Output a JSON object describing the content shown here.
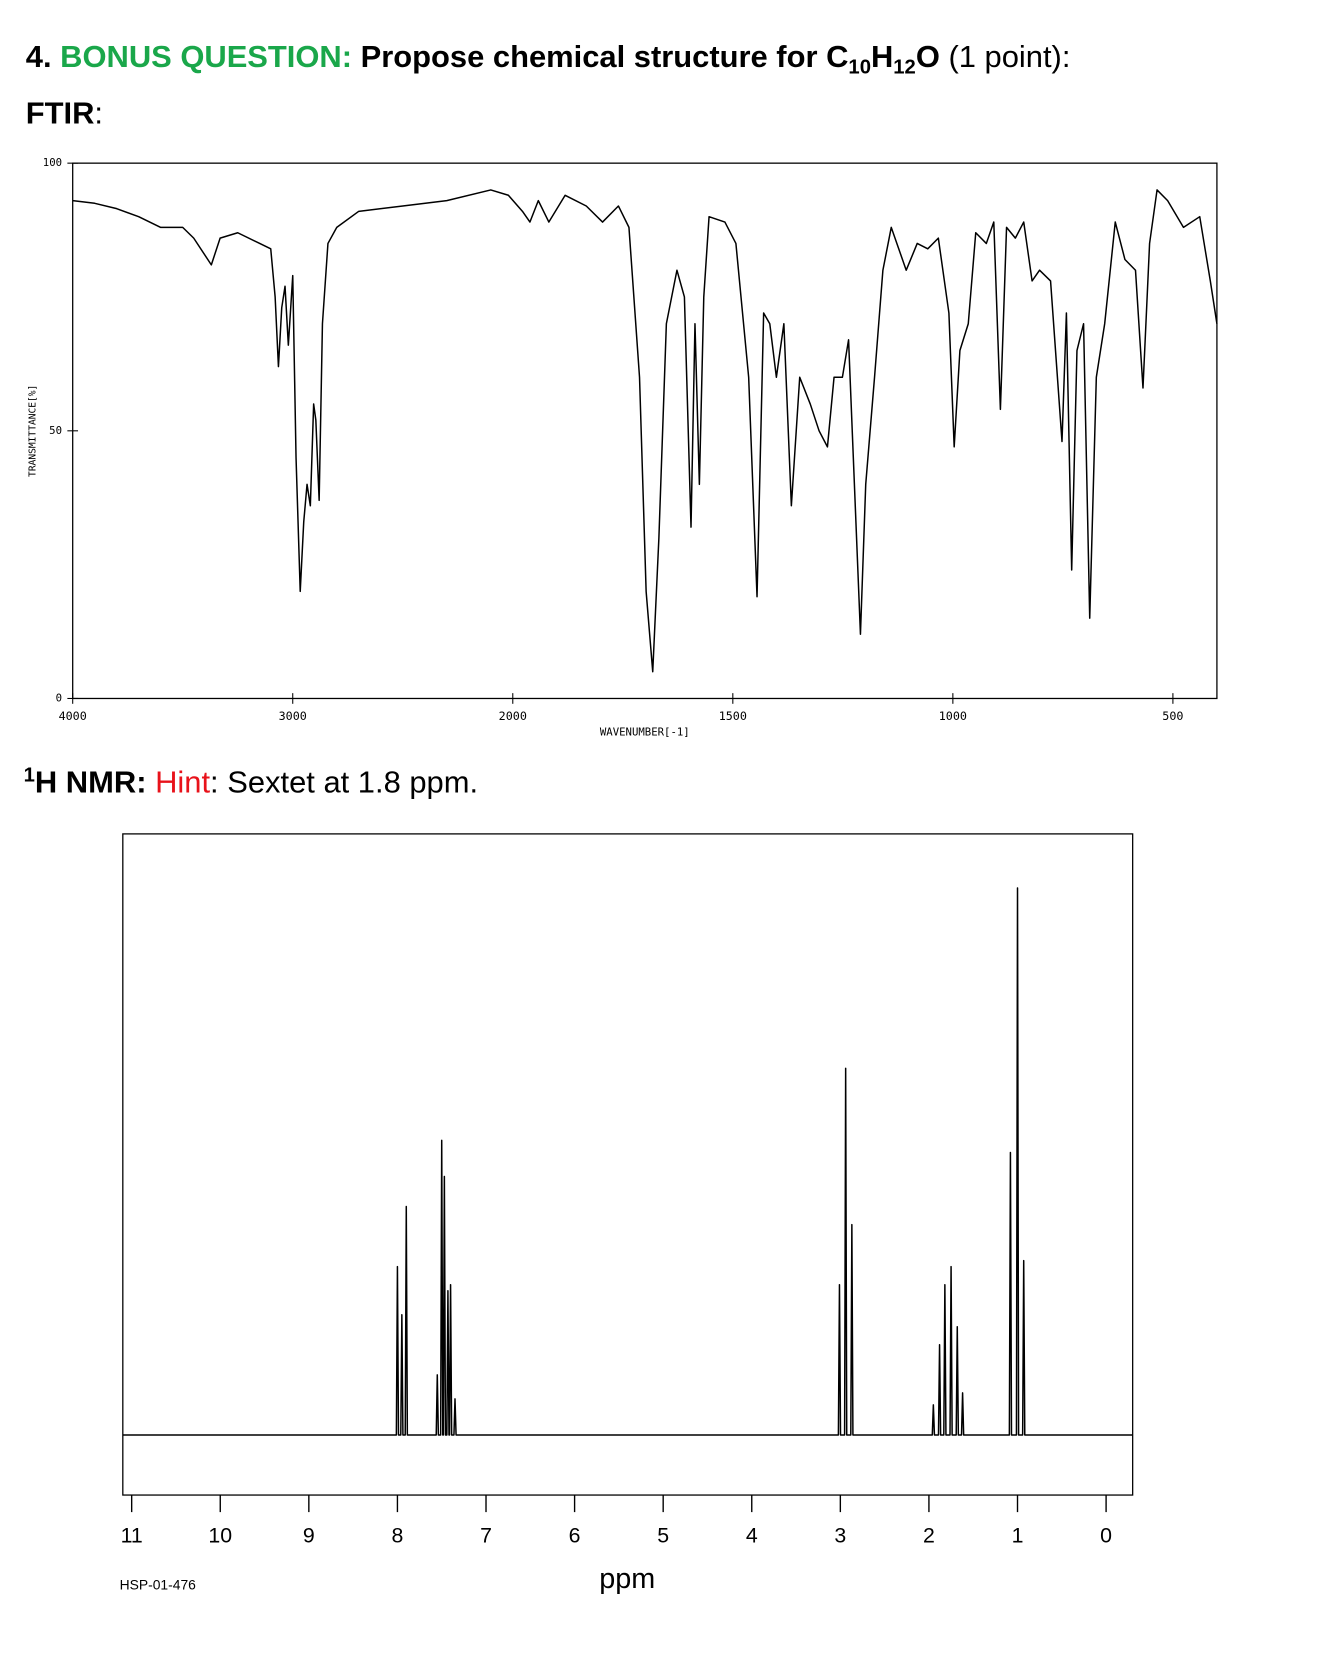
{
  "question": {
    "number": "4.",
    "label": "BONUS QUESTION:",
    "text": "Propose chemical structure for",
    "formula": [
      "C",
      "10",
      "H",
      "12",
      "O"
    ],
    "points": "(1 point):"
  },
  "ftir_heading": {
    "label": "FTIR",
    "colon": ":"
  },
  "nmr_heading": {
    "superscript": "1",
    "label": "H NMR:",
    "hint_label": "Hint",
    "hint_text": ": Sextet at 1.8 ppm."
  },
  "chart_data": [
    {
      "type": "line",
      "x_label": "WAVENUMBER[-1]",
      "y_label": "TRANSMITTANCE[%]",
      "color": "#000000",
      "grid": false,
      "xlim": [
        4000,
        400
      ],
      "xscale_break": 2000,
      "ylim": [
        0,
        100
      ],
      "xticks": [
        4000,
        3000,
        2000,
        1500,
        1000,
        500
      ],
      "yticks": [
        0,
        50,
        100
      ],
      "x": [
        4000,
        3900,
        3800,
        3700,
        3600,
        3500,
        3450,
        3370,
        3330,
        3250,
        3150,
        3100,
        3080,
        3065,
        3050,
        3035,
        3020,
        3000,
        2985,
        2966,
        2950,
        2935,
        2920,
        2905,
        2895,
        2880,
        2865,
        2840,
        2800,
        2700,
        2500,
        2300,
        2100,
        2020,
        1978,
        1961,
        1942,
        1918,
        1881,
        1833,
        1796,
        1760,
        1736,
        1712,
        1697,
        1682,
        1668,
        1651,
        1627,
        1610,
        1595,
        1586,
        1576,
        1566,
        1554,
        1518,
        1493,
        1464,
        1445,
        1430,
        1416,
        1401,
        1384,
        1367,
        1348,
        1324,
        1304,
        1285,
        1270,
        1251,
        1237,
        1210,
        1198,
        1178,
        1159,
        1140,
        1106,
        1081,
        1057,
        1033,
        1009,
        997,
        984,
        965,
        948,
        924,
        907,
        892,
        878,
        858,
        839,
        820,
        803,
        778,
        752,
        742,
        730,
        718,
        703,
        689,
        674,
        655,
        631,
        609,
        585,
        568,
        553,
        536,
        512,
        476,
        439,
        415,
        400
      ],
      "values": [
        93,
        92.5,
        91.5,
        90,
        88,
        88,
        86,
        81,
        86,
        87,
        85,
        84,
        75,
        62,
        73,
        77,
        66,
        79,
        45,
        20,
        33,
        40,
        36,
        55,
        52,
        37,
        70,
        85,
        88,
        91,
        92,
        93,
        95,
        94,
        91,
        89,
        93,
        89,
        94,
        92,
        89,
        92,
        88,
        60,
        20,
        5,
        30,
        70,
        80,
        75,
        32,
        70,
        40,
        75,
        90,
        89,
        85,
        60,
        19,
        72,
        70,
        60,
        70,
        36,
        60,
        55,
        50,
        47,
        60,
        60,
        67,
        12,
        40,
        60,
        80,
        88,
        80,
        85,
        84,
        86,
        72,
        47,
        65,
        70,
        87,
        85,
        89,
        54,
        88,
        86,
        89,
        78,
        80,
        78,
        48,
        72,
        24,
        65,
        70,
        15,
        60,
        70,
        89,
        82,
        80,
        58,
        85,
        95,
        93,
        88,
        90,
        78,
        70
      ]
    },
    {
      "type": "line",
      "x_label": "ppm",
      "annotation": "HSP-01-476",
      "color": "#000000",
      "grid": false,
      "xlim": [
        11.1,
        -0.3
      ],
      "ylim": [
        -10,
        100
      ],
      "xticks": [
        11,
        10,
        9,
        8,
        7,
        6,
        5,
        4,
        3,
        2,
        1,
        0
      ],
      "x": [
        11.1,
        8.012,
        8.0,
        7.988,
        7.962,
        7.95,
        7.938,
        7.912,
        7.9,
        7.888,
        7.562,
        7.55,
        7.538,
        7.512,
        7.5,
        7.488,
        7.482,
        7.47,
        7.458,
        7.442,
        7.43,
        7.418,
        7.412,
        7.4,
        7.388,
        7.362,
        7.35,
        7.338,
        3.022,
        3.01,
        2.998,
        2.952,
        2.94,
        2.928,
        2.882,
        2.87,
        2.858,
        1.962,
        1.95,
        1.938,
        1.892,
        1.88,
        1.868,
        1.832,
        1.82,
        1.808,
        1.762,
        1.75,
        1.738,
        1.692,
        1.68,
        1.668,
        1.632,
        1.62,
        1.608,
        1.092,
        1.08,
        1.068,
        1.012,
        1.0,
        0.988,
        0.942,
        0.93,
        0.918,
        -0.3
      ],
      "values": [
        0,
        0,
        28,
        0,
        0,
        20,
        0,
        0,
        38,
        0,
        0,
        10,
        0,
        0,
        49,
        0,
        0,
        43,
        0,
        0,
        24,
        0,
        0,
        25,
        0,
        0,
        6,
        0,
        0,
        25,
        0,
        0,
        61,
        0,
        0,
        35,
        0,
        0,
        5,
        0,
        0,
        15,
        0,
        0,
        25,
        0,
        0,
        28,
        0,
        0,
        18,
        0,
        0,
        7,
        0,
        0,
        47,
        0,
        0,
        91,
        0,
        0,
        29,
        0,
        0
      ]
    }
  ]
}
